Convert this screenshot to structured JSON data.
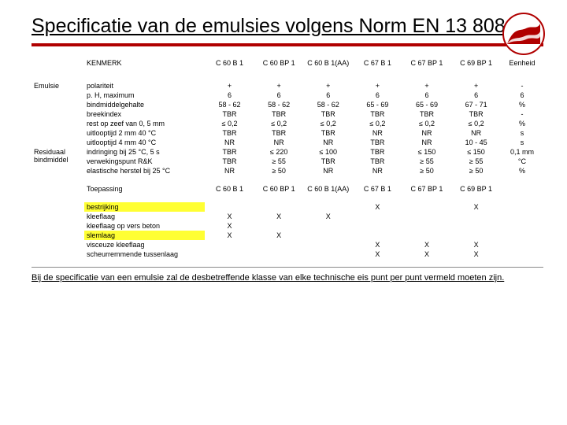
{
  "title": "Specificatie van de emulsies volgens Norm EN 13 808",
  "footnote": "Bij de specificatie van een emulsie zal de desbetreffende klasse van elke technische eis punt per punt vermeld moeten zijn.",
  "colors": {
    "accent": "#b00000",
    "highlight": "#ffff33",
    "background": "#ffffff",
    "text": "#000000"
  },
  "table": {
    "header1": {
      "kenmerk": "KENMERK",
      "cols": [
        "C 60 B 1",
        "C 60 BP 1",
        "C 60 B 1(AA)",
        "C 67 B 1",
        "C 67 BP 1",
        "C 69 BP 1"
      ],
      "eenheid": "Eenheid"
    },
    "categories": [
      {
        "label": "Emulsie",
        "span": 7
      },
      {
        "label": "Residuaal bindmiddel",
        "span": 3
      }
    ],
    "rows": [
      {
        "label": "polariteit",
        "v": [
          "+",
          "+",
          "+",
          "+",
          "+",
          "+"
        ],
        "u": "-"
      },
      {
        "label": "p. H, maximum",
        "v": [
          "6",
          "6",
          "6",
          "6",
          "6",
          "6"
        ],
        "u": "6"
      },
      {
        "label": "bindmiddelgehalte",
        "v": [
          "58 - 62",
          "58 - 62",
          "58 - 62",
          "65 - 69",
          "65 - 69",
          "67 - 71"
        ],
        "u": "%"
      },
      {
        "label": "breekindex",
        "v": [
          "TBR",
          "TBR",
          "TBR",
          "TBR",
          "TBR",
          "TBR"
        ],
        "u": "-"
      },
      {
        "label": "rest op zeef van 0, 5 mm",
        "v": [
          "≤ 0,2",
          "≤ 0,2",
          "≤ 0,2",
          "≤ 0,2",
          "≤ 0,2",
          "≤ 0,2"
        ],
        "u": "%"
      },
      {
        "label": "uitlooptijd 2 mm 40 °C",
        "v": [
          "TBR",
          "TBR",
          "TBR",
          "NR",
          "NR",
          "NR"
        ],
        "u": "s"
      },
      {
        "label": "uitlooptijd 4 mm 40 °C",
        "v": [
          "NR",
          "NR",
          "NR",
          "TBR",
          "NR",
          "10 - 45"
        ],
        "u": "s"
      },
      {
        "label": "indringing bij 25 °C, 5 s",
        "v": [
          "TBR",
          "≤ 220",
          "≤ 100",
          "TBR",
          "≤ 150",
          "≤ 150"
        ],
        "u": "0,1 mm"
      },
      {
        "label": "verwekingspunt R&K",
        "v": [
          "TBR",
          "≥ 55",
          "TBR",
          "TBR",
          "≥ 55",
          "≥ 55"
        ],
        "u": "°C"
      },
      {
        "label": "elastische herstel bij 25 °C",
        "v": [
          "NR",
          "≥ 50",
          "NR",
          "NR",
          "≥ 50",
          "≥ 50"
        ],
        "u": "%"
      }
    ],
    "header2": {
      "kenmerk": "Toepassing",
      "cols": [
        "C 60 B 1",
        "C 60 BP 1",
        "C 60 B 1(AA)",
        "C 67 B 1",
        "C 67 BP 1",
        "C 69 BP 1"
      ]
    },
    "apps": [
      {
        "label": "bestrijking",
        "hl": true,
        "v": [
          "",
          "",
          "",
          "X",
          "",
          "X"
        ]
      },
      {
        "label": "kleeflaag",
        "hl": false,
        "v": [
          "X",
          "X",
          "X",
          "",
          "",
          ""
        ]
      },
      {
        "label": "kleeflaag op vers beton",
        "hl": false,
        "v": [
          "X",
          "",
          "",
          "",
          "",
          ""
        ]
      },
      {
        "label": "slemlaag",
        "hl": true,
        "v": [
          "X",
          "X",
          "",
          "",
          "",
          ""
        ]
      },
      {
        "label": "visceuze kleeflaag",
        "hl": false,
        "v": [
          "",
          "",
          "",
          "X",
          "X",
          "X"
        ]
      },
      {
        "label": "scheurremmende tussenlaag",
        "hl": false,
        "v": [
          "",
          "",
          "",
          "X",
          "X",
          "X"
        ]
      }
    ]
  }
}
